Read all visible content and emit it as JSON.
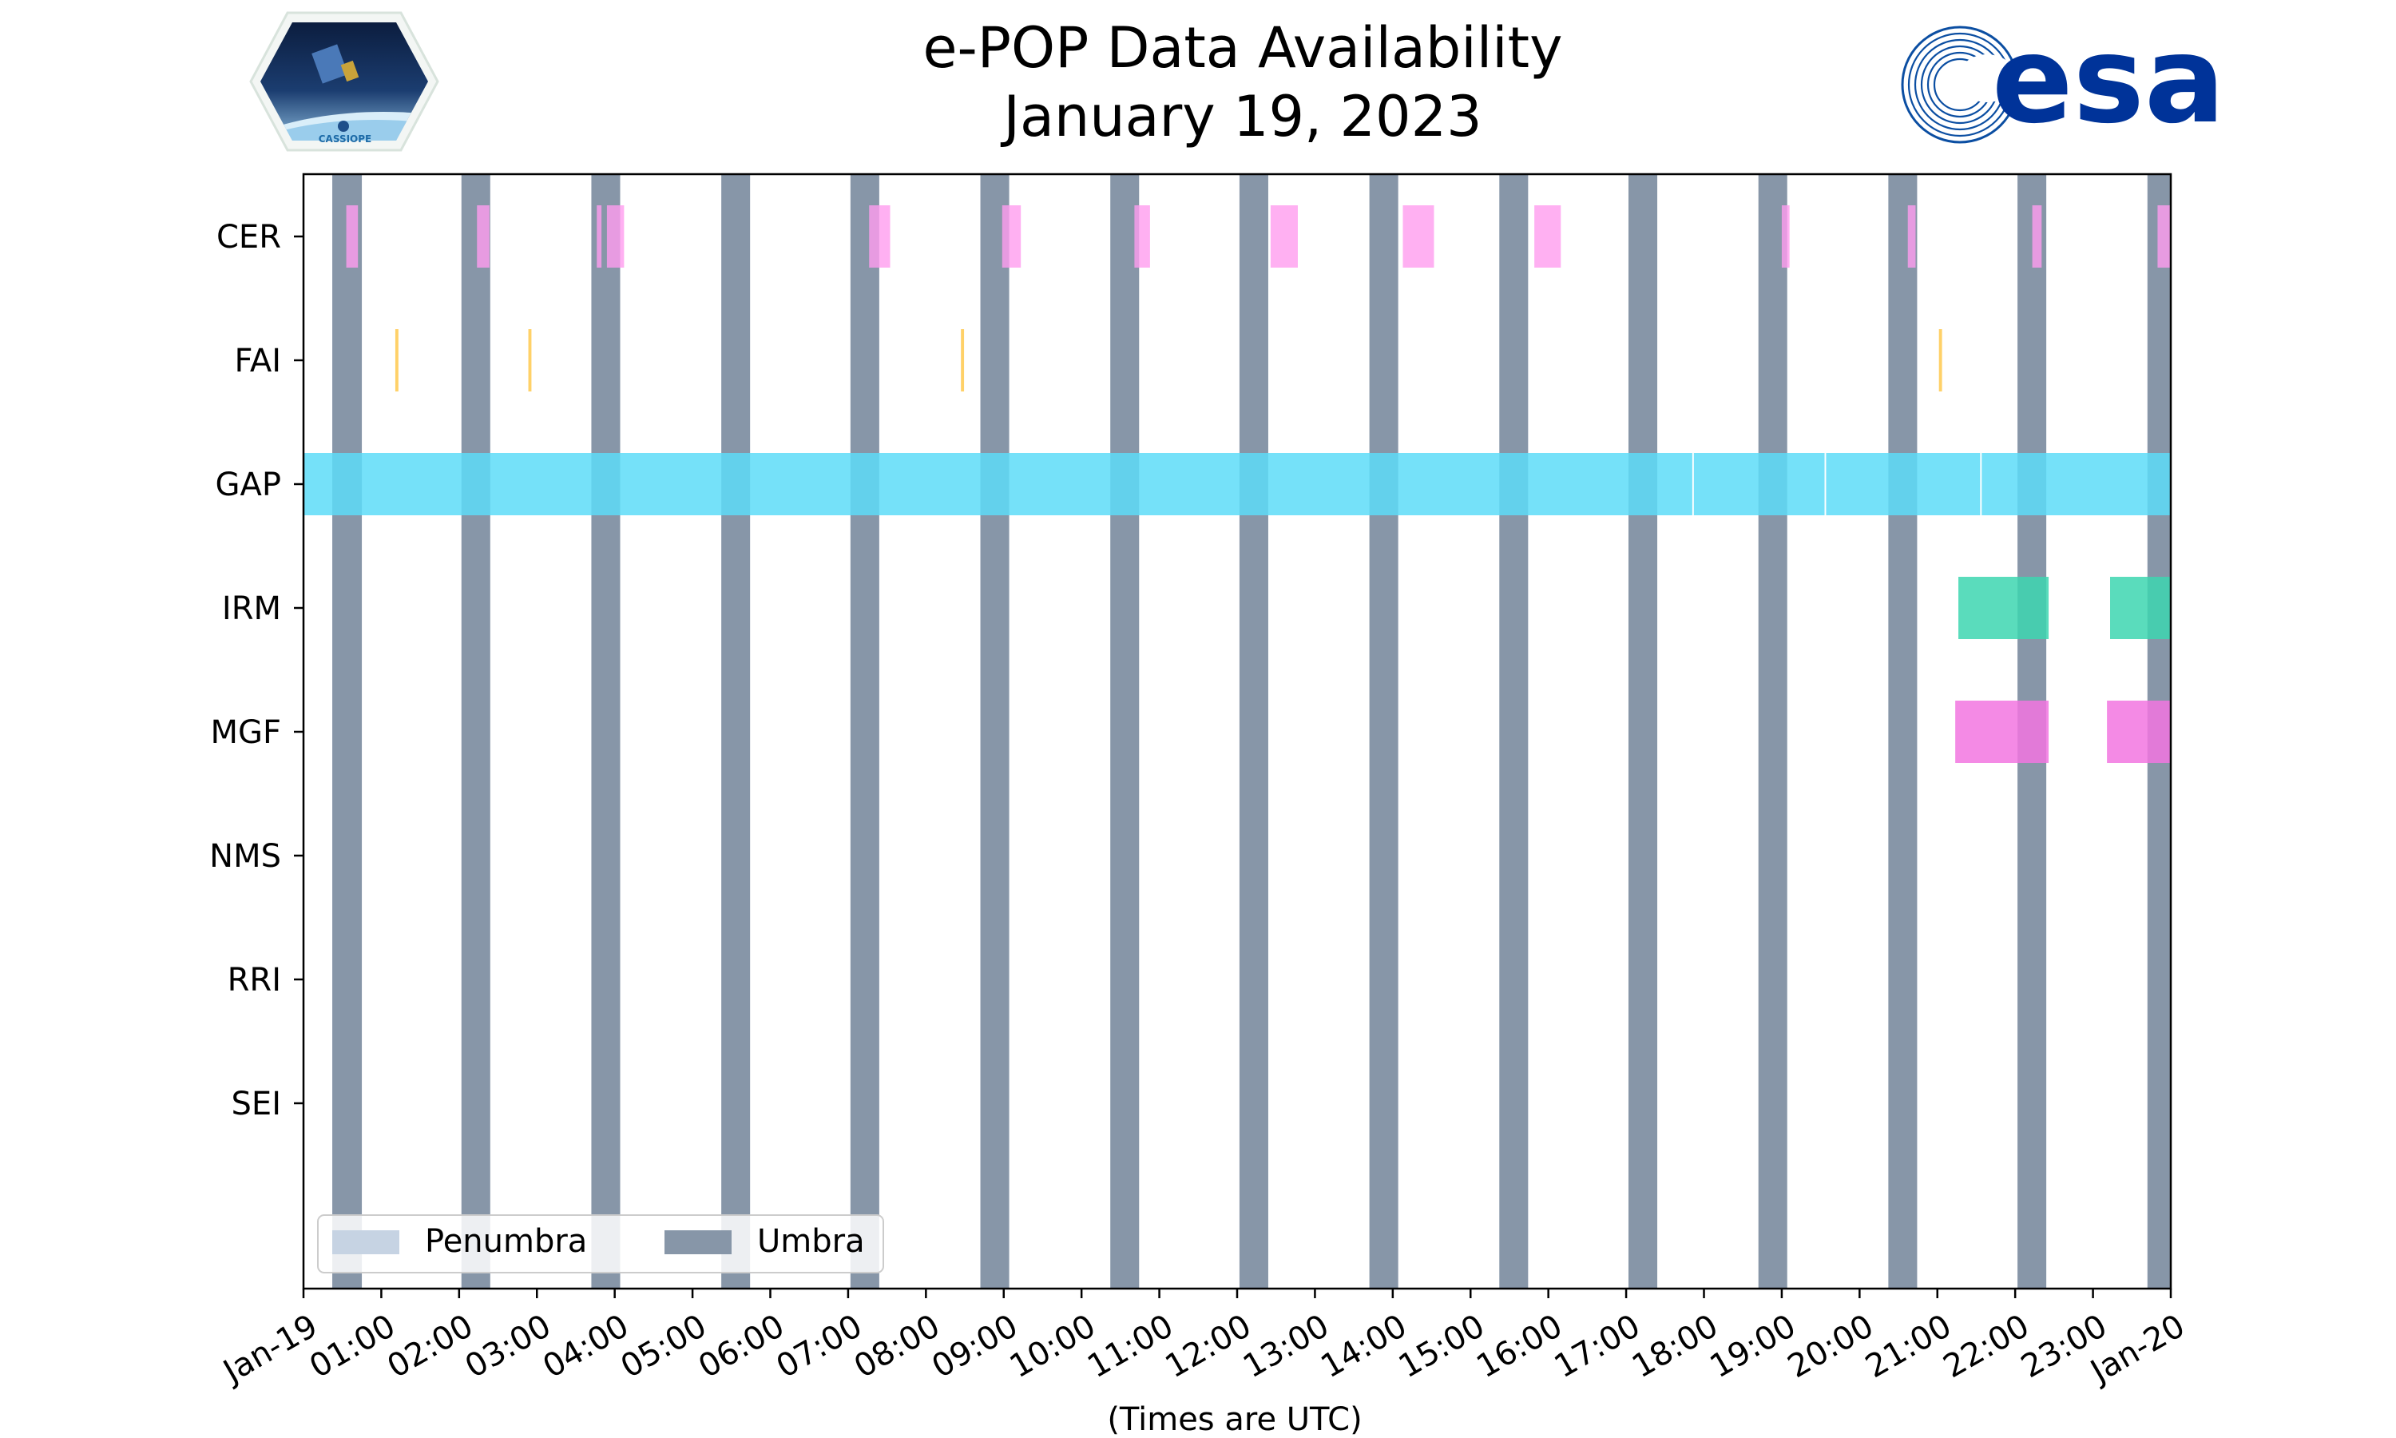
{
  "header": {
    "title_line1": "e-POP Data Availability",
    "title_line2": "January 19, 2023",
    "left_logo_text": "CASSIOPE",
    "right_logo_text": "esa"
  },
  "colors": {
    "umbra": "#8796a8",
    "penumbra": "#c6d3e3",
    "CER": "#ff9cef",
    "FAI": "#ffc94d",
    "GAP": "#5ddcf8",
    "IRM": "#3dd6b0",
    "MGF": "#f276e0"
  },
  "chart_data": {
    "type": "timeline",
    "x_unit": "hours (UTC) since 2023-01-19 00:00",
    "xlim": [
      0,
      24
    ],
    "xlabel": "(Times are UTC)",
    "x_tick_labels": [
      "Jan-19",
      "01:00",
      "02:00",
      "03:00",
      "04:00",
      "05:00",
      "06:00",
      "07:00",
      "08:00",
      "09:00",
      "10:00",
      "11:00",
      "12:00",
      "13:00",
      "14:00",
      "15:00",
      "16:00",
      "17:00",
      "18:00",
      "19:00",
      "20:00",
      "21:00",
      "22:00",
      "23:00",
      "Jan-20"
    ],
    "instruments": [
      "CER",
      "FAI",
      "GAP",
      "IRM",
      "MGF",
      "NMS",
      "RRI",
      "SEI"
    ],
    "umbra_intervals": [
      [
        0.37,
        0.75
      ],
      [
        2.03,
        2.4
      ],
      [
        3.7,
        4.07
      ],
      [
        5.37,
        5.74
      ],
      [
        7.03,
        7.4
      ],
      [
        8.7,
        9.07
      ],
      [
        10.37,
        10.74
      ],
      [
        12.03,
        12.4
      ],
      [
        13.7,
        14.07
      ],
      [
        15.37,
        15.74
      ],
      [
        17.03,
        17.4
      ],
      [
        18.7,
        19.07
      ],
      [
        20.37,
        20.74
      ],
      [
        22.03,
        22.4
      ],
      [
        23.7,
        24.0
      ]
    ],
    "availability": {
      "CER": [
        [
          0.55,
          0.7
        ],
        [
          2.23,
          2.39
        ],
        [
          3.77,
          3.83
        ],
        [
          3.9,
          4.12
        ],
        [
          7.27,
          7.54
        ],
        [
          8.98,
          9.22
        ],
        [
          10.68,
          10.88
        ],
        [
          12.43,
          12.78
        ],
        [
          14.13,
          14.53
        ],
        [
          15.82,
          16.16
        ],
        [
          19.0,
          19.1
        ],
        [
          20.62,
          20.72
        ],
        [
          22.22,
          22.34
        ],
        [
          23.83,
          24.0
        ]
      ],
      "FAI": [
        [
          1.18,
          1.22
        ],
        [
          2.89,
          2.93
        ],
        [
          8.45,
          8.49
        ],
        [
          21.02,
          21.06
        ]
      ],
      "GAP": [
        [
          0.0,
          17.85
        ],
        [
          17.87,
          19.55
        ],
        [
          19.57,
          21.55
        ],
        [
          21.57,
          24.0
        ]
      ],
      "IRM": [
        [
          21.27,
          22.43
        ],
        [
          23.22,
          24.0
        ]
      ],
      "MGF": [
        [
          21.23,
          22.43
        ],
        [
          23.18,
          24.0
        ]
      ],
      "NMS": [],
      "RRI": [],
      "SEI": []
    },
    "legend": {
      "placement": "lower-left",
      "entries": [
        "Penumbra",
        "Umbra"
      ]
    }
  }
}
